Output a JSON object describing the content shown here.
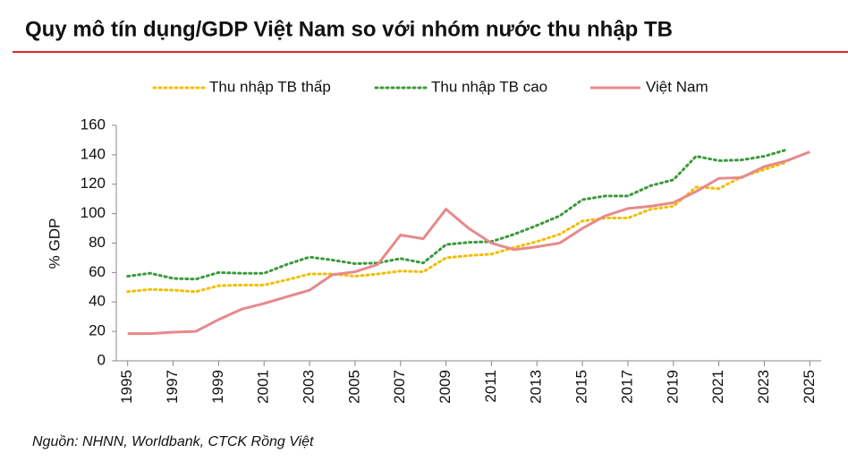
{
  "chart_data": {
    "type": "line",
    "title": "Quy mô tín dụng/GDP Việt Nam so với nhóm nước thu nhập TB",
    "y_label": "% GDP",
    "source": "Nguồn: NHNN, Worldbank, CTCK Rồng Việt",
    "x": [
      1995,
      1996,
      1997,
      1998,
      1999,
      2000,
      2001,
      2002,
      2003,
      2004,
      2005,
      2006,
      2007,
      2008,
      2009,
      2010,
      2011,
      2012,
      2013,
      2014,
      2015,
      2016,
      2017,
      2018,
      2019,
      2020,
      2021,
      2022,
      2023,
      2024,
      2025
    ],
    "series": [
      {
        "name": "Thu nhập TB thấp",
        "color": "#f2be00",
        "style": "dotted",
        "values": [
          47,
          48.5,
          48,
          47,
          51,
          51.5,
          51.5,
          55,
          59,
          59,
          57.5,
          59,
          61,
          60.5,
          70,
          71.5,
          72.5,
          77,
          81,
          86,
          95,
          97,
          97,
          103,
          105,
          118,
          117,
          125,
          130,
          135,
          null
        ]
      },
      {
        "name": "Thu nhập TB cao",
        "color": "#3a9a3a",
        "style": "dotted",
        "values": [
          57.5,
          59.5,
          56,
          55.5,
          60,
          59.5,
          59.5,
          65.5,
          70.5,
          68.5,
          66,
          66.5,
          69.5,
          66.5,
          79,
          80.5,
          81,
          86,
          92,
          98.5,
          109.5,
          112,
          112,
          119,
          123,
          139,
          136,
          136.5,
          139,
          143.5,
          null
        ]
      },
      {
        "name": "Việt Nam",
        "color": "#e8898b",
        "style": "solid",
        "values": [
          18.5,
          18.5,
          19.5,
          20,
          28,
          35,
          39,
          43.5,
          48,
          58.5,
          60.5,
          65.5,
          85.5,
          83,
          103,
          90,
          80,
          75.5,
          77.5,
          80,
          90,
          98.5,
          103.5,
          105,
          107.5,
          115,
          124,
          124.5,
          132,
          136,
          142
        ]
      }
    ],
    "xlim": [
      1994.5,
      2025.5
    ],
    "xticks": [
      1995,
      1997,
      1999,
      2001,
      2003,
      2005,
      2007,
      2009,
      2011,
      2013,
      2015,
      2017,
      2019,
      2021,
      2023,
      2025
    ],
    "ylim": [
      0,
      160
    ],
    "yticks": [
      0,
      20,
      40,
      60,
      80,
      100,
      120,
      140,
      160
    ]
  }
}
